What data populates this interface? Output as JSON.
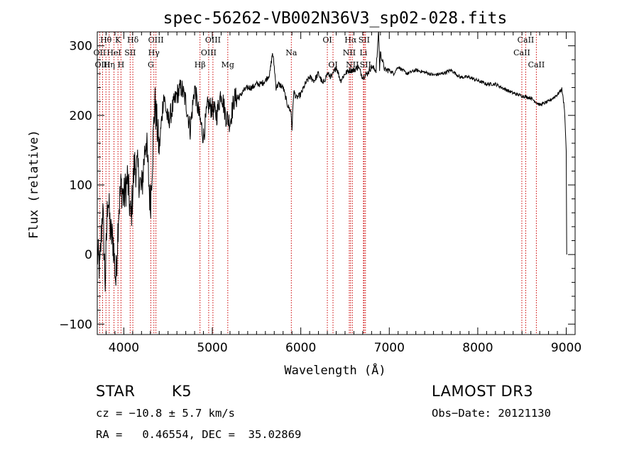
{
  "chart_data": {
    "type": "line",
    "title": "spec-56262-VB002N36V3_sp02-028.fits",
    "xlabel": "Wavelength (Å)",
    "ylabel": "Flux (relative)",
    "xlim": [
      3700,
      9100
    ],
    "ylim": [
      -115,
      320
    ],
    "x_ticks": [
      4000,
      5000,
      6000,
      7000,
      8000,
      9000
    ],
    "x_tick_labels": [
      "4000",
      "5000",
      "6000",
      "7000",
      "8000",
      "9000"
    ],
    "y_ticks": [
      -100,
      0,
      100,
      200,
      300
    ],
    "y_tick_labels": [
      "−100",
      "0",
      "100",
      "200",
      "300"
    ],
    "spectrum": {
      "x": [
        3700,
        3730,
        3760,
        3790,
        3820,
        3850,
        3880,
        3910,
        3940,
        3970,
        4000,
        4040,
        4080,
        4120,
        4160,
        4200,
        4250,
        4300,
        4350,
        4400,
        4450,
        4500,
        4550,
        4600,
        4650,
        4700,
        4750,
        4800,
        4850,
        4900,
        4950,
        5000,
        5050,
        5100,
        5150,
        5200,
        5250,
        5300,
        5350,
        5400,
        5450,
        5500,
        5550,
        5600,
        5650,
        5680,
        5700,
        5720,
        5750,
        5800,
        5850,
        5890,
        5900,
        5920,
        5950,
        6000,
        6050,
        6100,
        6150,
        6200,
        6250,
        6300,
        6350,
        6400,
        6450,
        6500,
        6550,
        6600,
        6650,
        6700,
        6750,
        6800,
        6850,
        6870,
        6880,
        6890,
        6900,
        6950,
        7000,
        7050,
        7100,
        7200,
        7300,
        7400,
        7500,
        7600,
        7700,
        7800,
        7900,
        8000,
        8100,
        8200,
        8300,
        8400,
        8500,
        8600,
        8700,
        8800,
        8900,
        8950,
        8980,
        9000,
        9005
      ],
      "y": [
        0,
        -20,
        70,
        -40,
        90,
        30,
        20,
        -40,
        60,
        100,
        80,
        110,
        50,
        130,
        120,
        90,
        170,
        70,
        220,
        150,
        230,
        190,
        210,
        230,
        240,
        220,
        180,
        240,
        200,
        170,
        215,
        210,
        200,
        235,
        200,
        190,
        225,
        225,
        235,
        240,
        240,
        245,
        245,
        250,
        260,
        290,
        270,
        240,
        245,
        240,
        215,
        205,
        180,
        235,
        225,
        230,
        245,
        255,
        250,
        260,
        245,
        260,
        255,
        270,
        250,
        260,
        265,
        265,
        270,
        255,
        260,
        270,
        265,
        300,
        330,
        265,
        290,
        265,
        265,
        260,
        270,
        260,
        265,
        262,
        258,
        260,
        265,
        255,
        255,
        250,
        245,
        245,
        238,
        232,
        228,
        225,
        215,
        220,
        230,
        238,
        210,
        150,
        0
      ]
    },
    "lines": [
      {
        "name": "Hθ",
        "wave": 3798,
        "row": 1
      },
      {
        "name": "OII",
        "wave": 3727,
        "row": 2
      },
      {
        "name": "OIII",
        "wave": 3760,
        "row": 3
      },
      {
        "name": "K",
        "wave": 3934,
        "row": 1
      },
      {
        "name": "HeI",
        "wave": 3889,
        "row": 2
      },
      {
        "name": "Hη",
        "wave": 3835,
        "row": 3
      },
      {
        "name": "Hδ",
        "wave": 4102,
        "row": 1
      },
      {
        "name": "SII",
        "wave": 4072,
        "row": 2
      },
      {
        "name": "H",
        "wave": 3968,
        "row": 3
      },
      {
        "name": "OIII",
        "wave": 4363,
        "row": 1
      },
      {
        "name": "Hγ",
        "wave": 4340,
        "row": 2
      },
      {
        "name": "G",
        "wave": 4305,
        "row": 3
      },
      {
        "name": "OIII",
        "wave": 5007,
        "row": 1
      },
      {
        "name": "OIII",
        "wave": 4959,
        "row": 2
      },
      {
        "name": "Hβ",
        "wave": 4861,
        "row": 3
      },
      {
        "name": "Mg",
        "wave": 5175,
        "row": 3
      },
      {
        "name": "Na",
        "wave": 5893,
        "row": 2
      },
      {
        "name": "OI",
        "wave": 6300,
        "row": 1
      },
      {
        "name": "OI",
        "wave": 6364,
        "row": 3
      },
      {
        "name": "Hα",
        "wave": 6563,
        "row": 1
      },
      {
        "name": "SII",
        "wave": 6716,
        "row": 1
      },
      {
        "name": "NII",
        "wave": 6548,
        "row": 2
      },
      {
        "name": "Li",
        "wave": 6708,
        "row": 2
      },
      {
        "name": "NII",
        "wave": 6583,
        "row": 3
      },
      {
        "name": "SII",
        "wave": 6731,
        "row": 3
      },
      {
        "name": "CaII",
        "wave": 8542,
        "row": 1
      },
      {
        "name": "CaII",
        "wave": 8498,
        "row": 2
      },
      {
        "name": "CaII",
        "wave": 8662,
        "row": 3
      }
    ]
  },
  "info": {
    "object_class": "STAR",
    "subclass": "K5",
    "survey": "LAMOST DR3",
    "cz": "cz = −10.8 ± 5.7 km/s",
    "obs_date": "Obs−Date: 20121130",
    "coords": "RA =   0.46554, DEC =  35.02869"
  },
  "colors": {
    "line_marker": "#cc0000",
    "spectrum": "#000000",
    "background": "#ffffff"
  }
}
